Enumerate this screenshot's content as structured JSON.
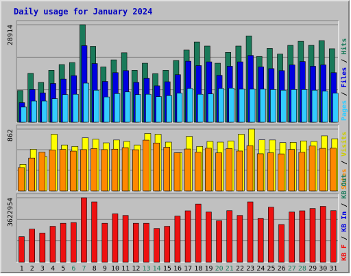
{
  "title": "Daily usage for January 2024",
  "colors": {
    "background": "#c0c0c0",
    "title": "#0000c0",
    "hits": "#1a7a5a",
    "files": "#0000e0",
    "pages": "#33ccff",
    "visits": "#ffff00",
    "sites": "#ff8800",
    "kb": "#ee1111",
    "weekend_label": "#208060",
    "weekday_label": "#000000"
  },
  "chart_data": {
    "type": "bar",
    "title": "Daily usage for January 2024",
    "categories": [
      "1",
      "2",
      "3",
      "4",
      "5",
      "6",
      "7",
      "8",
      "9",
      "10",
      "11",
      "12",
      "13",
      "14",
      "15",
      "16",
      "17",
      "18",
      "19",
      "20",
      "21",
      "22",
      "23",
      "24",
      "25",
      "26",
      "27",
      "28",
      "29",
      "30",
      "31"
    ],
    "weekend_days": [
      "6",
      "7",
      "13",
      "14",
      "20",
      "21",
      "27",
      "28"
    ],
    "panels": [
      {
        "name": "hits-files-pages",
        "max_label": "28914",
        "ymax": 28914,
        "legend": [
          "Pages",
          "Files",
          "Hits"
        ],
        "series": [
          {
            "name": "Hits",
            "color": "#1a7a5a",
            "values": [
              9400,
              14500,
              11800,
              15400,
              17100,
              17700,
              28914,
              22500,
              16400,
              18500,
              20600,
              15400,
              17500,
              14400,
              15400,
              18300,
              21400,
              23800,
              22600,
              17500,
              20700,
              22600,
              25600,
              19500,
              21900,
              20200,
              22800,
              24000,
              22800,
              24200,
              21800
            ]
          },
          {
            "name": "Files",
            "color": "#0000e0",
            "values": [
              5800,
              9700,
              8700,
              11500,
              12800,
              13800,
              22700,
              17400,
              12100,
              14700,
              15300,
              11800,
              13000,
              10800,
              12000,
              14100,
              18100,
              16800,
              17900,
              13900,
              16600,
              17900,
              19800,
              16400,
              15900,
              15300,
              17000,
              18000,
              16600,
              17000,
              14700
            ]
          },
          {
            "name": "Pages",
            "color": "#33ccff",
            "values": [
              4500,
              6300,
              6300,
              7000,
              8200,
              8300,
              11600,
              9500,
              7500,
              8500,
              9000,
              8200,
              8300,
              7600,
              7900,
              8600,
              10000,
              8300,
              8400,
              10000,
              10100,
              9800,
              9800,
              9800,
              9700,
              9500,
              9700,
              9700,
              9500,
              9200,
              8600
            ]
          }
        ]
      },
      {
        "name": "visits-sites",
        "max_label": "862",
        "ymax": 862,
        "legend": [
          "Sites",
          "Visits"
        ],
        "series": [
          {
            "name": "Visits",
            "color": "#ffff00",
            "values": [
              370,
              580,
              480,
              790,
              640,
              620,
              740,
              720,
              670,
              710,
              690,
              640,
              800,
              790,
              680,
              532,
              760,
              620,
              690,
              680,
              697,
              790,
              862,
              712,
              710,
              673,
              677,
              697,
              690,
              767,
              727
            ]
          },
          {
            "name": "Sites",
            "color": "#ff8800",
            "values": [
              325,
              458,
              540,
              570,
              578,
              555,
              576,
              590,
              576,
              582,
              603,
              574,
              708,
              668,
              608,
              532,
              584,
              540,
              595,
              531,
              590,
              556,
              631,
              518,
              531,
              516,
              578,
              539,
              625,
              593,
              595
            ]
          }
        ]
      },
      {
        "name": "kb",
        "max_label": "3622954",
        "ymax": 3622954,
        "legend": [
          "KB F",
          "KB In",
          "KB Out"
        ],
        "series": [
          {
            "name": "KB F",
            "color": "#ee1111",
            "values": [
              1440000,
              1860000,
              1640000,
              2020000,
              2190000,
              2230000,
              3622954,
              3390000,
              2190000,
              2720000,
              2630000,
              2190000,
              2190000,
              1900000,
              2020000,
              2590000,
              2890000,
              3270000,
              2820000,
              2330000,
              2900000,
              2630000,
              3390000,
              2460000,
              3090000,
              2120000,
              2820000,
              2890000,
              3020000,
              3140000,
              2900000
            ]
          }
        ]
      }
    ]
  }
}
